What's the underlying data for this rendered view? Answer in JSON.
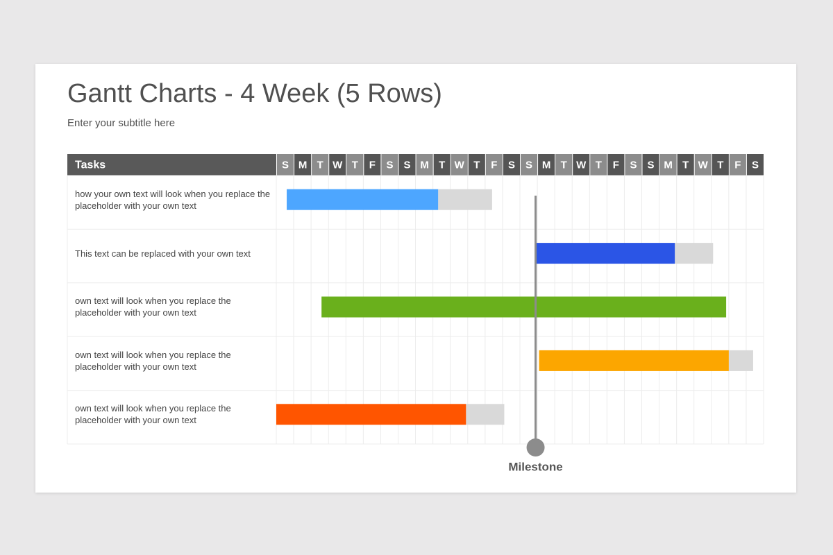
{
  "chart_data": {
    "type": "gantt",
    "title": "Gantt Charts - 4 Week (5 Rows)",
    "subtitle": "Enter your subtitle here",
    "task_header": "Tasks",
    "days": [
      "S",
      "M",
      "T",
      "W",
      "T",
      "F",
      "S",
      "S",
      "M",
      "T",
      "W",
      "T",
      "F",
      "S",
      "S",
      "M",
      "T",
      "W",
      "T",
      "F",
      "S",
      "S",
      "M",
      "T",
      "W",
      "T",
      "F",
      "S"
    ],
    "xlim": [
      0,
      28
    ],
    "remaining_color": "#d9d9d9",
    "tasks": [
      {
        "label": "how your own text will look when you replace the placeholder with your own text",
        "color": "#4da6ff",
        "start": 0.6,
        "progress": 9.3,
        "end": 12.4
      },
      {
        "label": "This text can be replaced with your own text",
        "color": "#2b55e6",
        "start": 14.9,
        "progress": 22.9,
        "end": 25.1
      },
      {
        "label": "own text will look when you replace the placeholder with your own text",
        "color": "#6ab01c",
        "start": 2.6,
        "progress": 25.85,
        "end": 25.85
      },
      {
        "label": "own text will look when you replace the placeholder with your own text",
        "color": "#fca600",
        "start": 15.1,
        "progress": 26.0,
        "end": 27.4
      },
      {
        "label": "own text will look when you replace the placeholder with your own text",
        "color": "#ff5500",
        "start": 0,
        "progress": 10.9,
        "end": 13.1
      }
    ],
    "milestone": {
      "label": "Milestone",
      "value": 14.9,
      "color": "#8c8c8c"
    }
  }
}
